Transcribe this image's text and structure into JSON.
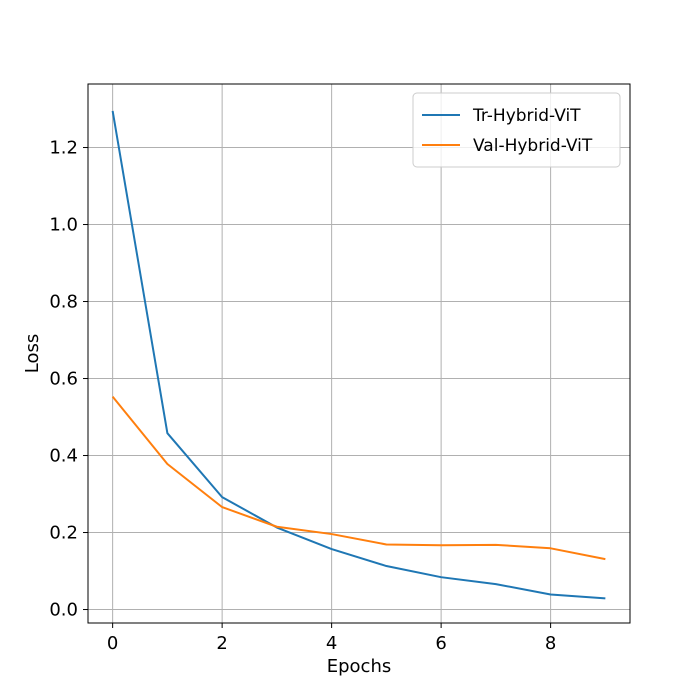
{
  "chart_data": {
    "type": "line",
    "title": "",
    "xlabel": "Epochs",
    "ylabel": "Loss",
    "xlim": [
      -0.45,
      9.45
    ],
    "ylim": [
      -0.035,
      1.365
    ],
    "xticks": [
      0,
      2,
      4,
      6,
      8
    ],
    "xtick_labels": [
      "0",
      "2",
      "4",
      "6",
      "8"
    ],
    "yticks": [
      0.0,
      0.2,
      0.4,
      0.6,
      0.8,
      1.0,
      1.2
    ],
    "ytick_labels": [
      "0.0",
      "0.2",
      "0.4",
      "0.6",
      "0.8",
      "1.0",
      "1.2"
    ],
    "grid": true,
    "legend_position": "top-right",
    "x": [
      0,
      1,
      2,
      3,
      4,
      5,
      6,
      7,
      8,
      9
    ],
    "series": [
      {
        "name": "Tr-Hybrid-ViT",
        "color": "#1f77b4",
        "values": [
          1.295,
          0.458,
          0.292,
          0.213,
          0.157,
          0.113,
          0.084,
          0.066,
          0.039,
          0.029
        ]
      },
      {
        "name": "Val-Hybrid-ViT",
        "color": "#ff7f0e",
        "values": [
          0.553,
          0.378,
          0.266,
          0.215,
          0.196,
          0.169,
          0.167,
          0.168,
          0.159,
          0.131
        ]
      }
    ]
  }
}
